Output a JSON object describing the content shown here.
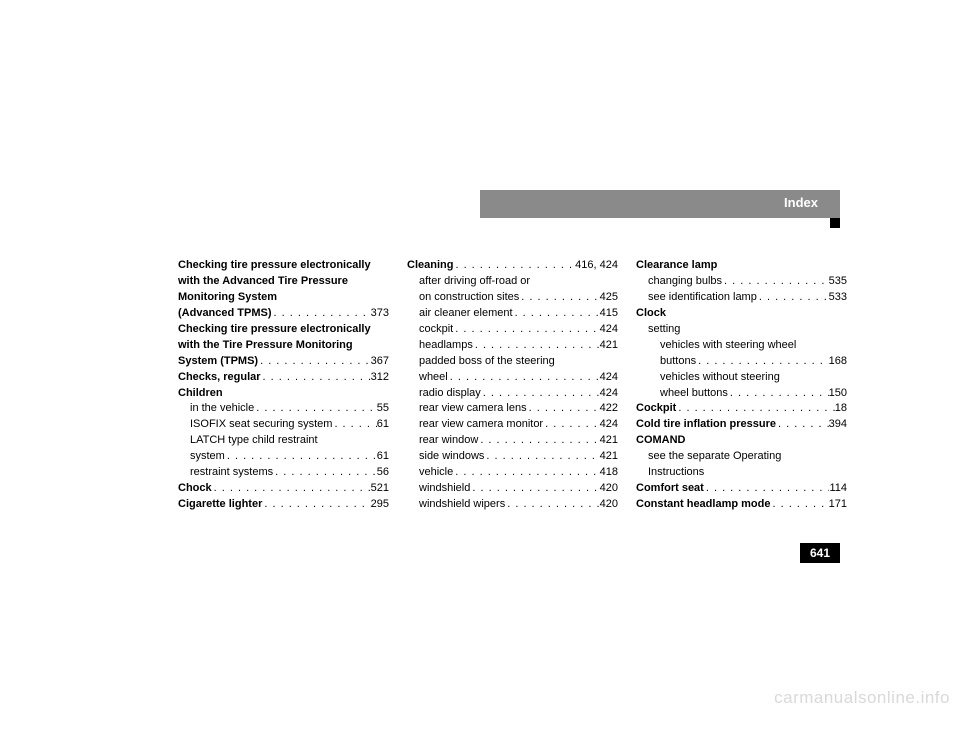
{
  "header": {
    "title": "Index"
  },
  "page_number": "641",
  "watermark": "carmanualsonline.info",
  "columns": [
    [
      {
        "label": "Checking tire pressure electronically",
        "bold": true,
        "noPage": true
      },
      {
        "label": "with the Advanced Tire Pressure",
        "bold": true,
        "noPage": true
      },
      {
        "label": "Monitoring System",
        "bold": true,
        "noPage": true
      },
      {
        "label": "(Advanced TPMS)",
        "bold": true,
        "page": "373"
      },
      {
        "label": "Checking tire pressure electronically",
        "bold": true,
        "noPage": true
      },
      {
        "label": "with the Tire Pressure Monitoring",
        "bold": true,
        "noPage": true
      },
      {
        "label": "System (TPMS)",
        "bold": true,
        "page": "367"
      },
      {
        "label": "Checks, regular",
        "bold": true,
        "page": "312"
      },
      {
        "label": "Children",
        "bold": true,
        "noPage": true
      },
      {
        "label": "in the vehicle",
        "indent": 1,
        "page": "55"
      },
      {
        "label": "ISOFIX seat securing system",
        "indent": 1,
        "page": "61"
      },
      {
        "label": "LATCH type child restraint",
        "indent": 1,
        "noPage": true
      },
      {
        "label": "system",
        "indent": 1,
        "page": "61"
      },
      {
        "label": "restraint systems",
        "indent": 1,
        "page": "56"
      },
      {
        "label": "Chock",
        "bold": true,
        "page": "521"
      },
      {
        "label": "Cigarette lighter",
        "bold": true,
        "page": "295"
      }
    ],
    [
      {
        "label": "Cleaning",
        "bold": true,
        "page": "416, 424"
      },
      {
        "label": "after driving off-road or",
        "indent": 1,
        "noPage": true
      },
      {
        "label": "on construction sites",
        "indent": 1,
        "page": "425"
      },
      {
        "label": "air cleaner element",
        "indent": 1,
        "page": "415"
      },
      {
        "label": "cockpit",
        "indent": 1,
        "page": "424"
      },
      {
        "label": "headlamps",
        "indent": 1,
        "page": "421"
      },
      {
        "label": "padded boss of the steering",
        "indent": 1,
        "noPage": true
      },
      {
        "label": "wheel",
        "indent": 1,
        "page": "424"
      },
      {
        "label": "radio display",
        "indent": 1,
        "page": "424"
      },
      {
        "label": "rear view camera lens",
        "indent": 1,
        "page": "422"
      },
      {
        "label": "rear view camera monitor",
        "indent": 1,
        "page": "424"
      },
      {
        "label": "rear window",
        "indent": 1,
        "page": "421"
      },
      {
        "label": "side windows",
        "indent": 1,
        "page": "421"
      },
      {
        "label": "vehicle",
        "indent": 1,
        "page": "418"
      },
      {
        "label": "windshield",
        "indent": 1,
        "page": "420"
      },
      {
        "label": "windshield wipers",
        "indent": 1,
        "page": "420"
      }
    ],
    [
      {
        "label": "Clearance lamp",
        "bold": true,
        "noPage": true
      },
      {
        "label": "changing bulbs",
        "indent": 1,
        "page": "535"
      },
      {
        "label": "see identification lamp",
        "indent": 1,
        "page": "533"
      },
      {
        "label": "Clock",
        "bold": true,
        "noPage": true
      },
      {
        "label": "setting",
        "indent": 1,
        "noPage": true
      },
      {
        "label": "vehicles with steering wheel",
        "indent": 2,
        "noPage": true
      },
      {
        "label": "buttons",
        "indent": 2,
        "page": "168"
      },
      {
        "label": "vehicles without steering",
        "indent": 2,
        "noPage": true
      },
      {
        "label": "wheel buttons",
        "indent": 2,
        "page": "150"
      },
      {
        "label": "Cockpit",
        "bold": true,
        "page": "18",
        "tightDots": true
      },
      {
        "label": "Cold tire inflation pressure",
        "bold": true,
        "page": "394"
      },
      {
        "label": "COMAND",
        "bold": true,
        "noPage": true
      },
      {
        "label": "see the separate Operating",
        "indent": 1,
        "noPage": true
      },
      {
        "label": "Instructions",
        "indent": 1,
        "noPage": true
      },
      {
        "label": "Comfort seat",
        "bold": true,
        "page": "114"
      },
      {
        "label": "Constant headlamp mode",
        "bold": true,
        "page": "171"
      }
    ]
  ]
}
